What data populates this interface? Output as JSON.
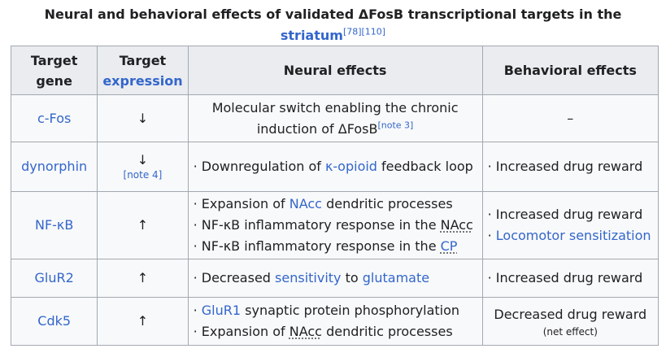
{
  "caption": {
    "text": "Neural and behavioral effects of validated ΔFosB transcriptional targets in the",
    "link": "striatum",
    "refs": "[78][110]"
  },
  "headers": {
    "target_gene_1": "Target",
    "target_gene_2": "gene",
    "target_expr_1": "Target",
    "target_expr_2": "expression",
    "neural": "Neural effects",
    "behavioral": "Behavioral effects"
  },
  "rows": [
    {
      "gene": "c-Fos",
      "expression": "↓",
      "neural_text": "Molecular switch enabling the chronic induction of ΔFosB",
      "neural_note": "[note 3]",
      "behavioral": "–"
    },
    {
      "gene": "dynorphin",
      "expression": "↓",
      "expression_note": "[note 4]",
      "neural_pre": "Downregulation of ",
      "neural_link": "κ-opioid",
      "neural_post": " feedback loop",
      "behavioral": "Increased drug reward"
    },
    {
      "gene": "NF-κB",
      "expression": "↑",
      "neural_1_pre": "Expansion of ",
      "neural_1_link": "NAcc",
      "neural_1_post": " dendritic processes",
      "neural_2_pre": "NF-κB inflammatory response in the ",
      "neural_2_abbr": "NAcc",
      "neural_3_pre": "NF-κB inflammatory response in the ",
      "neural_3_abbr": "CP",
      "behavioral_1": "Increased drug reward",
      "behavioral_2": "Locomotor sensitization"
    },
    {
      "gene": "GluR2",
      "expression": "↑",
      "neural_pre": "Decreased ",
      "neural_link1": "sensitivity",
      "neural_mid": " to ",
      "neural_link2": "glutamate",
      "behavioral": "Increased drug reward"
    },
    {
      "gene": "Cdk5",
      "expression": "↑",
      "neural_1_link": "GluR1",
      "neural_1_post": " synaptic protein phosphorylation",
      "neural_2_pre": "Expansion of ",
      "neural_2_abbr": "NAcc",
      "neural_2_post": " dendritic processes",
      "behavioral": "Decreased drug reward",
      "behavioral_note": "(net effect)"
    }
  ]
}
